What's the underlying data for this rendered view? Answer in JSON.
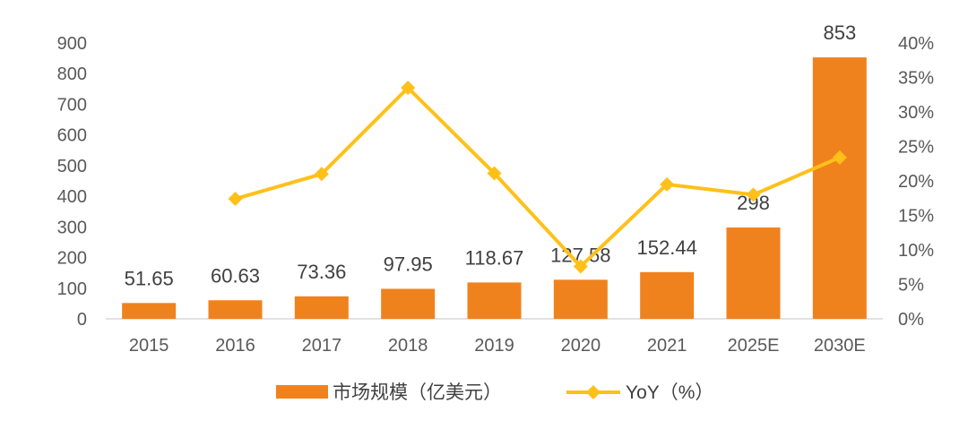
{
  "chart_data": {
    "type": "bar",
    "categories": [
      "2015",
      "2016",
      "2017",
      "2018",
      "2019",
      "2020",
      "2021",
      "2025E",
      "2030E"
    ],
    "series": [
      {
        "name": "市场规模（亿美元）",
        "type": "bar",
        "axis": "left",
        "color": "#F0821E",
        "values": [
          51.65,
          60.63,
          73.36,
          97.95,
          118.67,
          127.58,
          152.44,
          298,
          853
        ],
        "labels": [
          "51.65",
          "60.63",
          "73.36",
          "97.95",
          "118.67",
          "127.58",
          "152.44",
          "298",
          "853"
        ]
      },
      {
        "name": "YoY（%）",
        "type": "line",
        "axis": "right",
        "color": "#FFC019",
        "marker": "diamond",
        "values": [
          null,
          17.4,
          21.0,
          33.5,
          21.1,
          7.6,
          19.5,
          18.0,
          23.4
        ]
      }
    ],
    "y_left": {
      "min": 0,
      "max": 900,
      "ticks": [
        "0",
        "100",
        "200",
        "300",
        "400",
        "500",
        "600",
        "700",
        "800",
        "900"
      ]
    },
    "y_right": {
      "min": 0,
      "max": 40,
      "ticks": [
        "0%",
        "5%",
        "10%",
        "15%",
        "20%",
        "25%",
        "30%",
        "35%",
        "40%"
      ]
    },
    "grid": false,
    "legend_position": "bottom"
  }
}
